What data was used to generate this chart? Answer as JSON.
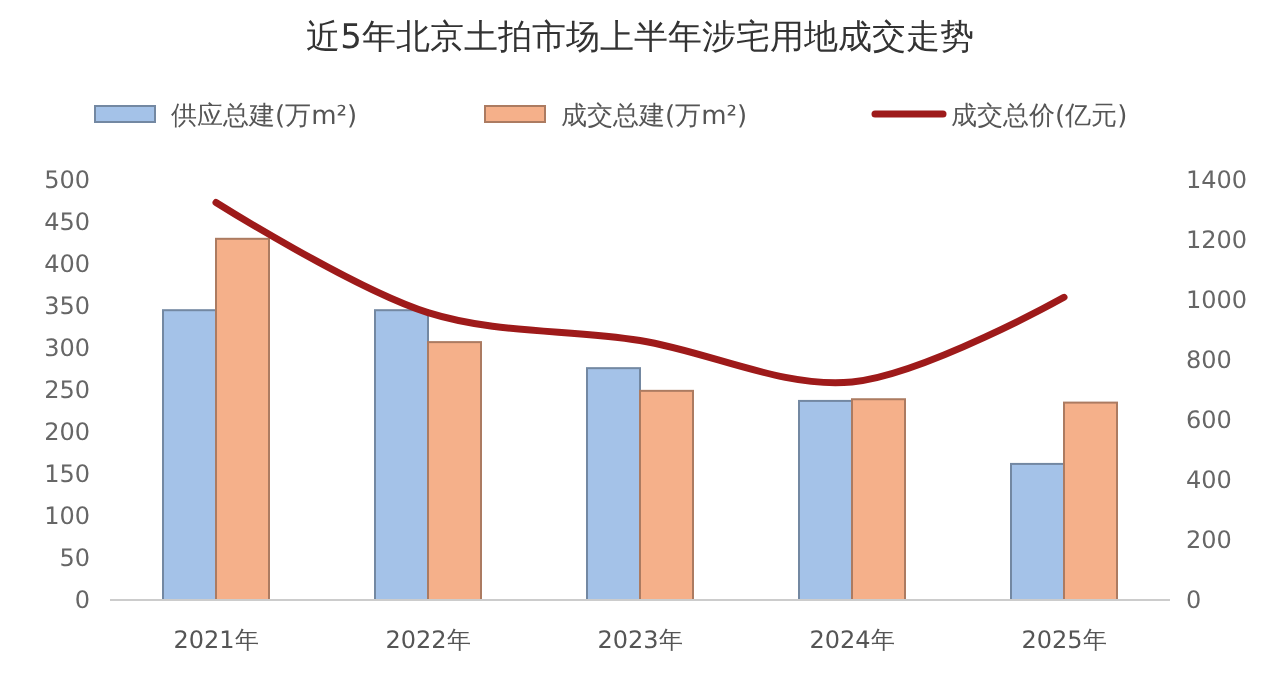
{
  "chart_data": {
    "type": "bar",
    "title": "近5年北京土拍市场上半年涉宅用地成交走势",
    "categories": [
      "2021年",
      "2022年",
      "2023年",
      "2024年",
      "2025年"
    ],
    "series": [
      {
        "name": "供应总建(万m²)",
        "color": "#a4c2e8",
        "values": [
          345,
          345,
          276,
          237,
          162
        ]
      },
      {
        "name": "成交总建(万m²)",
        "color": "#f5b08a",
        "values": [
          430,
          307,
          249,
          239,
          235
        ]
      },
      {
        "name": "成交总价(亿元)",
        "type": "line",
        "axis": "y2",
        "color": "#9e1a1a",
        "values": [
          1325,
          958,
          865,
          727,
          1009
        ]
      }
    ],
    "ylim": [
      0,
      500
    ],
    "yticks": [
      0,
      50,
      100,
      150,
      200,
      250,
      300,
      350,
      400,
      450,
      500
    ],
    "y2lim": [
      0,
      1400
    ],
    "y2ticks": [
      0,
      200,
      400,
      600,
      800,
      1000,
      1200,
      1400
    ],
    "legend": "top",
    "grid": false
  }
}
